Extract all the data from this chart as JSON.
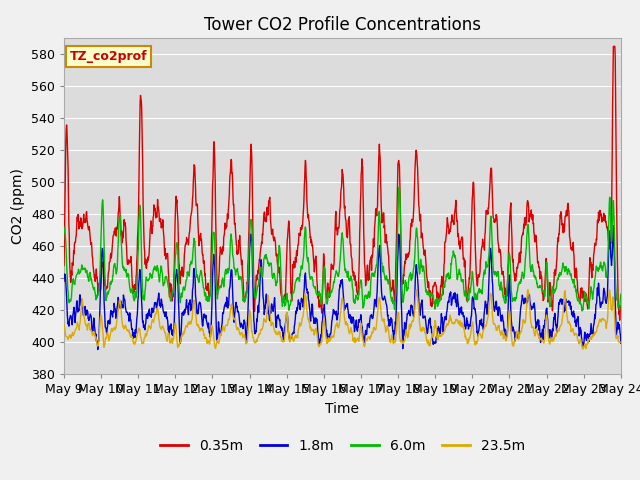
{
  "title": "Tower CO2 Profile Concentrations",
  "xlabel": "Time",
  "ylabel": "CO2 (ppm)",
  "ylim": [
    380,
    590
  ],
  "yticks": [
    380,
    400,
    420,
    440,
    460,
    480,
    500,
    520,
    540,
    560,
    580
  ],
  "x_start_day": 9,
  "x_end_day": 24,
  "x_tick_days": [
    9,
    10,
    11,
    12,
    13,
    14,
    15,
    16,
    17,
    18,
    19,
    20,
    21,
    22,
    23,
    24
  ],
  "colors": {
    "0.35m": "#dd0000",
    "1.8m": "#0000dd",
    "6.0m": "#00bb00",
    "23.5m": "#ddaa00"
  },
  "label_box_text": "TZ_co2prof",
  "label_box_facecolor": "#ffffcc",
  "label_box_edgecolor": "#cc8800",
  "plot_bg_color": "#dcdcdc",
  "fig_bg_color": "#f0f0f0",
  "grid_color": "#ffffff",
  "line_width": 1.0
}
